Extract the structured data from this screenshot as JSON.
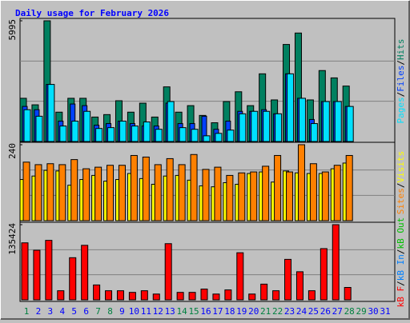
{
  "title": "Daily usage for February 2026",
  "legend_separator": "/",
  "categories": [
    "1",
    "2",
    "3",
    "4",
    "5",
    "6",
    "7",
    "8",
    "9",
    "10",
    "11",
    "12",
    "13",
    "14",
    "15",
    "16",
    "17",
    "18",
    "19",
    "20",
    "21",
    "22",
    "23",
    "24",
    "25",
    "26",
    "27",
    "28",
    "29",
    "30",
    "31"
  ],
  "category_colors": [
    "#008040",
    "#0000ff",
    "#0000ff",
    "#0000ff",
    "#0000ff",
    "#0000ff",
    "#008040",
    "#008040",
    "#0000ff",
    "#0000ff",
    "#0000ff",
    "#0000ff",
    "#0000ff",
    "#008040",
    "#008040",
    "#0000ff",
    "#0000ff",
    "#0000ff",
    "#0000ff",
    "#0000ff",
    "#008040",
    "#008040",
    "#0000ff",
    "#0000ff",
    "#0000ff",
    "#0000ff",
    "#0000ff",
    "#008040",
    "#008040",
    "#0000ff",
    "#0000ff"
  ],
  "chart_data": [
    {
      "type": "bar",
      "ylim": [
        0,
        5995
      ],
      "yticks": [
        5995
      ],
      "series": [
        {
          "name": "Hits",
          "color": "#008060",
          "values": [
            2147,
            1823,
            5995,
            1458,
            2147,
            2147,
            1215,
            1337,
            2025,
            1458,
            1904,
            1215,
            2714,
            1458,
            1782,
            1296,
            932,
            1985,
            2471,
            1782,
            3362,
            2066,
            4820,
            5387,
            2066,
            3524,
            3160,
            2754,
            null,
            null,
            null
          ]
        },
        {
          "name": "Files",
          "color": "#0040ff",
          "values": [
            1742,
            1580,
            2835,
            1013,
            1863,
            1782,
            810,
            891,
            1013,
            891,
            770,
            770,
            1904,
            891,
            891,
            1256,
            608,
            1013,
            1499,
            1499,
            1580,
            1377,
            3362,
            2147,
            1094,
            1985,
            1985,
            1742,
            null,
            null,
            null
          ]
        },
        {
          "name": "Pages",
          "color": "#00e0ff",
          "values": [
            1580,
            1256,
            2835,
            770,
            1013,
            1499,
            648,
            689,
            1013,
            770,
            972,
            608,
            1985,
            689,
            608,
            284,
            405,
            567,
            1377,
            1499,
            1499,
            1377,
            3362,
            2147,
            891,
            1985,
            1985,
            1742,
            null,
            null,
            null
          ]
        }
      ]
    },
    {
      "type": "bar",
      "ylim": [
        0,
        240
      ],
      "yticks": [
        240
      ],
      "series": [
        {
          "name": "Visits",
          "color": "#ffff00",
          "values": [
            130,
            141,
            159,
            157,
            112,
            130,
            143,
            125,
            130,
            149,
            133,
            115,
            141,
            143,
            128,
            110,
            107,
            120,
            115,
            149,
            154,
            122,
            157,
            151,
            149,
            149,
            164,
            182,
            null,
            null,
            null
          ]
        },
        {
          "name": "Sites",
          "color": "#ff8000",
          "values": [
            185,
            177,
            180,
            177,
            193,
            164,
            169,
            175,
            175,
            206,
            201,
            177,
            196,
            177,
            209,
            162,
            169,
            143,
            151,
            154,
            172,
            206,
            154,
            240,
            180,
            154,
            175,
            206,
            null,
            null,
            null
          ]
        }
      ]
    },
    {
      "type": "bar",
      "ylim": [
        0,
        135424
      ],
      "yticks": [
        135424
      ],
      "series": [
        {
          "name": "kB Out",
          "color": "#00c000",
          "values": [
            null,
            null,
            null,
            null,
            null,
            null,
            null,
            null,
            null,
            null,
            null,
            null,
            null,
            null,
            null,
            null,
            null,
            null,
            null,
            null,
            null,
            null,
            null,
            null,
            null,
            null,
            null,
            null,
            null,
            null,
            null
          ]
        },
        {
          "name": "kB In",
          "color": "#0080ff",
          "values": [
            null,
            null,
            null,
            null,
            null,
            null,
            null,
            null,
            null,
            null,
            null,
            null,
            null,
            null,
            null,
            null,
            null,
            null,
            null,
            null,
            null,
            null,
            null,
            null,
            null,
            null,
            null,
            null,
            null,
            null,
            null
          ]
        },
        {
          "name": "kB F",
          "color": "#ff0000",
          "values": [
            102685,
            89291,
            107150,
            16370,
            75898,
            98220,
            26787,
            16370,
            16370,
            13394,
            16370,
            10418,
            101197,
            13394,
            13394,
            19347,
            10418,
            17858,
            84827,
            10418,
            28275,
            16370,
            72921,
            50598,
            16370,
            92268,
            135424,
            22323,
            null,
            null,
            null
          ]
        }
      ]
    }
  ]
}
